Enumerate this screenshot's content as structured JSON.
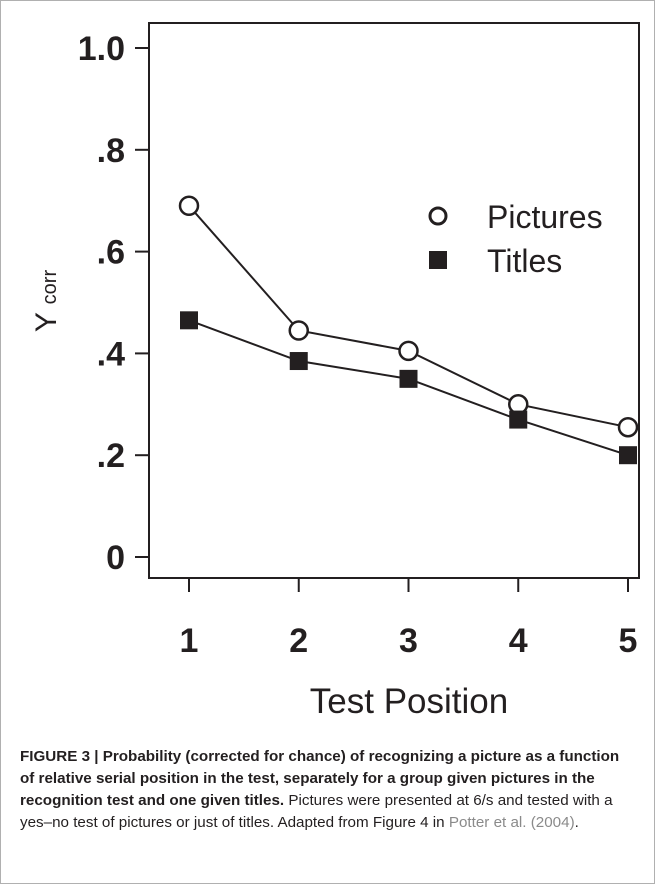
{
  "figure": {
    "caption_bold": "FIGURE 3 | Probability (corrected for chance) of recognizing a picture as a function of relative serial position in the test, separately for a group given pictures in the recognition test and one given titles.",
    "caption_body": " Pictures were presented at 6/s and tested with a yes–no test of pictures or just of titles. Adapted from Figure 4 in ",
    "caption_ref": "Potter et al. (2004)",
    "caption_end": "."
  },
  "chart_data": {
    "type": "line",
    "title": "",
    "xlabel": "Test Position",
    "ylabel_main": "Y",
    "ylabel_sub": "corr",
    "x": [
      1,
      2,
      3,
      4,
      5
    ],
    "xticks": [
      "1",
      "2",
      "3",
      "4",
      "5"
    ],
    "yticks": [
      {
        "value": 0,
        "label": "0"
      },
      {
        "value": 0.2,
        "label": ".2"
      },
      {
        "value": 0.4,
        "label": ".4"
      },
      {
        "value": 0.6,
        "label": ".6"
      },
      {
        "value": 0.8,
        "label": ".8"
      },
      {
        "value": 1.0,
        "label": "1.0"
      }
    ],
    "ylim": [
      -0.04,
      1.0
    ],
    "xlim": [
      1,
      5
    ],
    "grid": false,
    "legend_position": "upper-right",
    "series": [
      {
        "name": "Pictures",
        "marker": "open-circle",
        "values": [
          0.69,
          0.445,
          0.405,
          0.3,
          0.255
        ]
      },
      {
        "name": "Titles",
        "marker": "filled-square",
        "values": [
          0.465,
          0.385,
          0.35,
          0.27,
          0.2
        ]
      }
    ],
    "colors": {
      "ink": "#231f20",
      "background": "#ffffff"
    }
  }
}
